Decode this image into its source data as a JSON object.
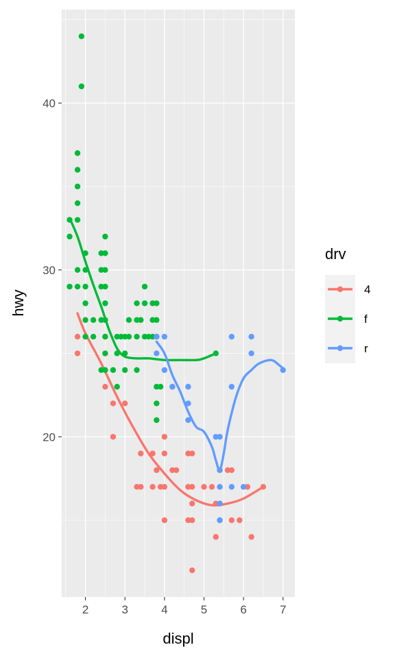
{
  "chart_data": {
    "type": "scatter",
    "title": "",
    "xlabel": "displ",
    "ylabel": "hwy",
    "xlim": [
      1.4,
      7.3
    ],
    "ylim": [
      10.4,
      45.6
    ],
    "x_ticks": [
      2,
      3,
      4,
      5,
      6,
      7
    ],
    "y_ticks": [
      20,
      30,
      40
    ],
    "grid": true,
    "legend": {
      "title": "drv",
      "placement": "right"
    },
    "colors": {
      "4": "#F8766D",
      "f": "#00BA38",
      "r": "#619CFF"
    },
    "series": [
      {
        "name": "4",
        "color": "#F8766D",
        "points": [
          [
            1.8,
            26
          ],
          [
            1.8,
            25
          ],
          [
            2.0,
            26
          ],
          [
            2.5,
            27
          ],
          [
            2.5,
            26
          ],
          [
            2.5,
            23
          ],
          [
            2.5,
            25
          ],
          [
            2.5,
            26
          ],
          [
            2.7,
            20
          ],
          [
            2.7,
            22
          ],
          [
            3.0,
            22
          ],
          [
            3.3,
            17
          ],
          [
            3.4,
            17
          ],
          [
            3.4,
            19
          ],
          [
            3.7,
            19
          ],
          [
            3.7,
            17
          ],
          [
            3.8,
            18
          ],
          [
            3.9,
            17
          ],
          [
            4.0,
            15
          ],
          [
            4.0,
            17
          ],
          [
            4.0,
            19
          ],
          [
            4.0,
            20
          ],
          [
            4.2,
            23
          ],
          [
            4.2,
            18
          ],
          [
            4.3,
            18
          ],
          [
            4.6,
            17
          ],
          [
            4.6,
            15
          ],
          [
            4.6,
            19
          ],
          [
            4.7,
            12
          ],
          [
            4.7,
            16
          ],
          [
            4.7,
            17
          ],
          [
            4.7,
            19
          ],
          [
            4.7,
            15
          ],
          [
            5.0,
            17
          ],
          [
            5.2,
            17
          ],
          [
            5.3,
            16
          ],
          [
            5.3,
            14
          ],
          [
            5.4,
            15
          ],
          [
            5.4,
            16
          ],
          [
            5.4,
            18
          ],
          [
            5.6,
            18
          ],
          [
            5.7,
            18
          ],
          [
            5.7,
            15
          ],
          [
            5.9,
            15
          ],
          [
            6.1,
            17
          ],
          [
            6.2,
            14
          ],
          [
            6.5,
            17
          ]
        ],
        "smooth": [
          [
            1.8,
            27.4
          ],
          [
            2.0,
            26.2
          ],
          [
            2.4,
            24.4
          ],
          [
            2.8,
            22.4
          ],
          [
            3.2,
            20.6
          ],
          [
            3.6,
            19.0
          ],
          [
            4.0,
            17.8
          ],
          [
            4.4,
            16.8
          ],
          [
            4.8,
            16.2
          ],
          [
            5.2,
            15.9
          ],
          [
            5.6,
            16.0
          ],
          [
            6.0,
            16.3
          ],
          [
            6.5,
            17.0
          ]
        ]
      },
      {
        "name": "f",
        "color": "#00BA38",
        "points": [
          [
            1.6,
            33
          ],
          [
            1.6,
            32
          ],
          [
            1.6,
            29
          ],
          [
            1.8,
            29
          ],
          [
            1.8,
            30
          ],
          [
            1.8,
            33
          ],
          [
            1.8,
            34
          ],
          [
            1.8,
            35
          ],
          [
            1.8,
            36
          ],
          [
            1.8,
            37
          ],
          [
            1.9,
            44
          ],
          [
            1.9,
            41
          ],
          [
            2.0,
            26
          ],
          [
            2.0,
            27
          ],
          [
            2.0,
            28
          ],
          [
            2.0,
            29
          ],
          [
            2.0,
            30
          ],
          [
            2.0,
            31
          ],
          [
            2.2,
            26
          ],
          [
            2.2,
            27
          ],
          [
            2.4,
            24
          ],
          [
            2.4,
            27
          ],
          [
            2.4,
            29
          ],
          [
            2.4,
            30
          ],
          [
            2.4,
            31
          ],
          [
            2.5,
            26
          ],
          [
            2.5,
            27
          ],
          [
            2.5,
            28
          ],
          [
            2.5,
            29
          ],
          [
            2.5,
            30
          ],
          [
            2.5,
            31
          ],
          [
            2.5,
            32
          ],
          [
            2.5,
            24
          ],
          [
            2.5,
            25
          ],
          [
            2.7,
            24
          ],
          [
            2.8,
            25
          ],
          [
            2.8,
            26
          ],
          [
            2.8,
            23
          ],
          [
            2.9,
            26
          ],
          [
            3.0,
            24
          ],
          [
            3.0,
            25
          ],
          [
            3.0,
            26
          ],
          [
            3.1,
            26
          ],
          [
            3.1,
            27
          ],
          [
            3.3,
            24
          ],
          [
            3.3,
            26
          ],
          [
            3.3,
            27
          ],
          [
            3.3,
            28
          ],
          [
            3.4,
            27
          ],
          [
            3.5,
            26
          ],
          [
            3.5,
            28
          ],
          [
            3.5,
            29
          ],
          [
            3.6,
            26
          ],
          [
            3.7,
            26
          ],
          [
            3.7,
            27
          ],
          [
            3.7,
            28
          ],
          [
            3.8,
            26
          ],
          [
            3.8,
            27
          ],
          [
            3.8,
            28
          ],
          [
            3.8,
            23
          ],
          [
            3.8,
            22
          ],
          [
            3.8,
            21
          ],
          [
            3.9,
            23
          ],
          [
            5.3,
            25
          ]
        ],
        "smooth": [
          [
            1.6,
            33.1
          ],
          [
            1.8,
            32.0
          ],
          [
            2.0,
            30.5
          ],
          [
            2.2,
            29.1
          ],
          [
            2.4,
            27.8
          ],
          [
            2.6,
            26.4
          ],
          [
            2.8,
            25.3
          ],
          [
            3.0,
            24.8
          ],
          [
            3.3,
            24.7
          ],
          [
            3.6,
            24.7
          ],
          [
            4.0,
            24.6
          ],
          [
            4.4,
            24.6
          ],
          [
            4.8,
            24.6
          ],
          [
            5.0,
            24.7
          ],
          [
            5.3,
            25.0
          ]
        ]
      },
      {
        "name": "r",
        "color": "#619CFF",
        "points": [
          [
            3.8,
            25
          ],
          [
            3.8,
            26
          ],
          [
            4.0,
            24
          ],
          [
            4.0,
            26
          ],
          [
            4.2,
            23
          ],
          [
            4.6,
            23
          ],
          [
            4.6,
            22
          ],
          [
            4.6,
            21
          ],
          [
            5.3,
            20
          ],
          [
            5.4,
            20
          ],
          [
            5.4,
            17
          ],
          [
            5.4,
            18
          ],
          [
            5.4,
            16
          ],
          [
            5.4,
            15
          ],
          [
            5.7,
            26
          ],
          [
            5.7,
            23
          ],
          [
            5.7,
            17
          ],
          [
            6.0,
            17
          ],
          [
            6.2,
            26
          ],
          [
            6.2,
            25
          ],
          [
            7.0,
            24
          ]
        ],
        "smooth": [
          [
            3.8,
            25.7
          ],
          [
            4.0,
            25.0
          ],
          [
            4.2,
            23.7
          ],
          [
            4.4,
            22.7
          ],
          [
            4.6,
            21.5
          ],
          [
            4.8,
            20.6
          ],
          [
            5.0,
            20.3
          ],
          [
            5.2,
            19.4
          ],
          [
            5.3,
            18.6
          ],
          [
            5.4,
            18.0
          ],
          [
            5.5,
            19.0
          ],
          [
            5.6,
            20.4
          ],
          [
            5.8,
            22.3
          ],
          [
            6.0,
            23.5
          ],
          [
            6.2,
            24.0
          ],
          [
            6.4,
            24.4
          ],
          [
            6.7,
            24.6
          ],
          [
            6.9,
            24.3
          ],
          [
            7.0,
            24.1
          ]
        ]
      }
    ]
  }
}
